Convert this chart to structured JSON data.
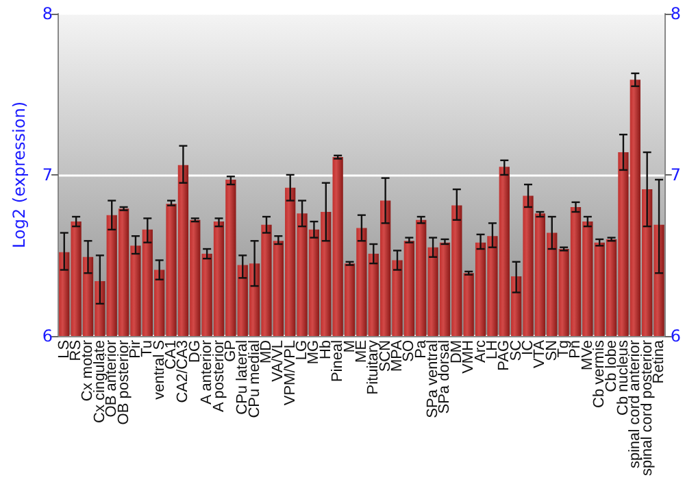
{
  "chart_data": {
    "type": "bar",
    "ylabel": "Log2 (expression)",
    "categories": [
      "LS",
      "RS",
      "Cx motor",
      "Cx cingulate",
      "OB anterior",
      "OB posterior",
      "Pir",
      "Tu",
      "ventral S",
      "CA1",
      "CA2/CA3",
      "DG",
      "A anterior",
      "A posterior",
      "GP",
      "CPu lateral",
      "CPu medial",
      "MD",
      "VA/VL",
      "VPM/VPL",
      "LG",
      "MG",
      "Hb",
      "Pineal",
      "M",
      "ME",
      "Pituitary",
      "SCN",
      "MPA",
      "SO",
      "Pa",
      "SPa ventral",
      "SPa dorsal",
      "DM",
      "VMH",
      "Arc",
      "LH",
      "PAG",
      "SC",
      "IC",
      "VTA",
      "SN",
      "Tg",
      "Pn",
      "MVe",
      "Cb vermis",
      "Cb lobe",
      "Cb nucleus",
      "spinal cord anterior",
      "spinal cord posterior",
      "Retina"
    ],
    "series": [
      {
        "color": "#c0302e",
        "values": [
          6.52,
          6.71,
          6.49,
          6.34,
          6.75,
          6.79,
          6.56,
          6.66,
          6.41,
          6.82,
          7.06,
          6.72,
          6.51,
          6.71,
          6.97,
          6.44,
          6.45,
          6.69,
          6.59,
          6.92,
          6.76,
          6.66,
          6.77,
          7.11,
          6.45,
          6.67,
          6.51,
          6.84,
          6.47,
          6.59,
          6.72,
          6.55,
          6.58,
          6.81,
          6.39,
          6.58,
          6.62,
          7.05,
          6.37,
          6.87,
          6.76,
          6.64,
          6.54,
          6.8,
          6.71,
          6.58,
          6.6,
          7.14,
          7.59,
          6.91,
          6.69
        ],
        "errors": [
          [
            6.41,
            6.64
          ],
          [
            6.68,
            6.74
          ],
          [
            6.39,
            6.59
          ],
          [
            6.2,
            6.5
          ],
          [
            6.66,
            6.84
          ],
          [
            6.78,
            6.8
          ],
          [
            6.51,
            6.62
          ],
          [
            6.58,
            6.73
          ],
          [
            6.35,
            6.47
          ],
          [
            6.81,
            6.84
          ],
          [
            6.95,
            7.18
          ],
          [
            6.71,
            6.73
          ],
          [
            6.48,
            6.54
          ],
          [
            6.68,
            6.73
          ],
          [
            6.94,
            6.99
          ],
          [
            6.36,
            6.5
          ],
          [
            6.31,
            6.59
          ],
          [
            6.64,
            6.74
          ],
          [
            6.57,
            6.62
          ],
          [
            6.84,
            7.0
          ],
          [
            6.68,
            6.84
          ],
          [
            6.61,
            6.71
          ],
          [
            6.59,
            6.95
          ],
          [
            7.1,
            7.12
          ],
          [
            6.44,
            6.46
          ],
          [
            6.59,
            6.75
          ],
          [
            6.45,
            6.57
          ],
          [
            6.7,
            6.98
          ],
          [
            6.41,
            6.53
          ],
          [
            6.58,
            6.61
          ],
          [
            6.7,
            6.74
          ],
          [
            6.49,
            6.61
          ],
          [
            6.57,
            6.6
          ],
          [
            6.72,
            6.91
          ],
          [
            6.38,
            6.4
          ],
          [
            6.54,
            6.63
          ],
          [
            6.55,
            6.7
          ],
          [
            7.0,
            7.09
          ],
          [
            6.27,
            6.46
          ],
          [
            6.8,
            6.94
          ],
          [
            6.74,
            6.77
          ],
          [
            6.54,
            6.74
          ],
          [
            6.53,
            6.55
          ],
          [
            6.77,
            6.83
          ],
          [
            6.68,
            6.74
          ],
          [
            6.56,
            6.6
          ],
          [
            6.59,
            6.61
          ],
          [
            7.03,
            7.25
          ],
          [
            7.55,
            7.63
          ],
          [
            6.68,
            7.14
          ],
          [
            6.39,
            6.97
          ]
        ]
      }
    ],
    "ylim": [
      6,
      8
    ],
    "yticks": [
      6,
      7,
      8
    ],
    "y2lim": [
      6,
      8
    ],
    "y2ticks": [
      6,
      7,
      8
    ],
    "grid": "y"
  }
}
